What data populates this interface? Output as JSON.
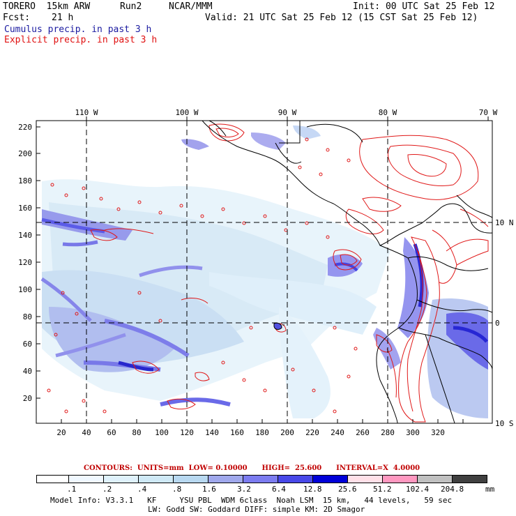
{
  "header": {
    "model_name": "TORERO  15km ARW",
    "run": "Run2",
    "org": "NCAR/MMM",
    "init": "Init: 00 UTC Sat 25 Feb 12",
    "fcst_label": "Fcst:",
    "fcst_value": "21 h",
    "valid": "Valid: 21 UTC Sat 25 Feb 12 (15 CST Sat 25 Feb 12)",
    "line_cumulus": "Cumulus precip. in past 3 h",
    "line_explicit": "Explicit precip. in past 3 h"
  },
  "map": {
    "lon_labels": [
      "110 W",
      "100 W",
      "90 W",
      "80 W",
      "70 W"
    ],
    "lat_labels": [
      "10 N",
      "0",
      "10 S"
    ],
    "y_ticks": [
      "220",
      "200",
      "180",
      "160",
      "140",
      "120",
      "100",
      "80",
      "60",
      "40",
      "20"
    ],
    "x_ticks": [
      "20",
      "40",
      "60",
      "80",
      "100",
      "120",
      "140",
      "160",
      "180",
      "200",
      "220",
      "240",
      "260",
      "280",
      "300",
      "320"
    ]
  },
  "contours": {
    "text": "CONTOURS:  UNITS=mm  LOW= 0.10000      HIGH=  25.600      INTERVAL=X  4.0000"
  },
  "legend": {
    "labels": [
      ".1",
      ".2",
      ".4",
      ".8",
      "1.6",
      "3.2",
      "6.4",
      "12.8",
      "25.6",
      "51.2",
      "102.4",
      "204.8"
    ],
    "unit": "mm",
    "colors": [
      "#ffffff",
      "#f0f8ff",
      "#dff1fb",
      "#cfe9f6",
      "#b8d8f0",
      "#a0a8ec",
      "#7c7cf0",
      "#4848e8",
      "#0000d8",
      "#ffe0e8",
      "#ff98c0",
      "#c0c0c0",
      "#404040",
      "#d8a8f8"
    ]
  },
  "footer": {
    "line1": "Model Info: V3.3.1   KF     YSU PBL  WDM 6class  Noah LSM  15 km,   44 levels,   59 sec",
    "line2": "LW: Godd SW: Goddard DIFF: simple KM: 2D Smagor"
  }
}
